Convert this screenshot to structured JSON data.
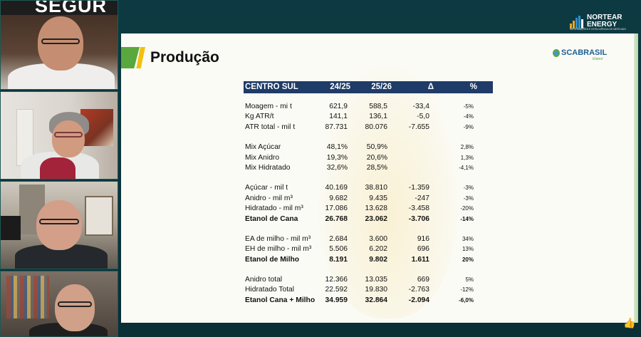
{
  "banner": {
    "text": "SEGUR"
  },
  "brand": {
    "name_line1": "NORTEAR",
    "name_line2": "ENERGY",
    "tagline": "INFORMAÇÕES E INTELIGÊNCIA DE MERCADO"
  },
  "slide": {
    "title": "Produção",
    "logo_name": "SCABRASIL",
    "logo_sub": "Etanol"
  },
  "table": {
    "headers": [
      "CENTRO SUL",
      "24/25",
      "25/26",
      "Δ",
      "%"
    ],
    "groups": [
      [
        {
          "label": "Moagem - mi t",
          "v1": "621,9",
          "v2": "588,5",
          "delta": "-33,4",
          "pct": "-5%",
          "bold": false
        },
        {
          "label": "Kg ATR/t",
          "v1": "141,1",
          "v2": "136,1",
          "delta": "-5,0",
          "pct": "-4%",
          "bold": false
        },
        {
          "label": "ATR total - mil t",
          "v1": "87.731",
          "v2": "80.076",
          "delta": "-7.655",
          "pct": "-9%",
          "bold": false
        }
      ],
      [
        {
          "label": "Mix Açúcar",
          "v1": "48,1%",
          "v2": "50,9%",
          "delta": "",
          "pct": "2,8%",
          "bold": false
        },
        {
          "label": "Mix Anidro",
          "v1": "19,3%",
          "v2": "20,6%",
          "delta": "",
          "pct": "1,3%",
          "bold": false
        },
        {
          "label": "Mix Hidratado",
          "v1": "32,6%",
          "v2": "28,5%",
          "delta": "",
          "pct": "-4,1%",
          "bold": false
        }
      ],
      [
        {
          "label": "Açúcar - mil t",
          "v1": "40.169",
          "v2": "38.810",
          "delta": "-1.359",
          "pct": "-3%",
          "bold": false
        },
        {
          "label": "Anidro - mil m³",
          "v1": "9.682",
          "v2": "9.435",
          "delta": "-247",
          "pct": "-3%",
          "bold": false
        },
        {
          "label": "Hidratado - mil m³",
          "v1": "17.086",
          "v2": "13.628",
          "delta": "-3.458",
          "pct": "-20%",
          "bold": false
        },
        {
          "label": "Etanol de Cana",
          "v1": "26.768",
          "v2": "23.062",
          "delta": "-3.706",
          "pct": "-14%",
          "bold": true
        }
      ],
      [
        {
          "label": "EA de milho - mil m³",
          "v1": "2.684",
          "v2": "3.600",
          "delta": "916",
          "pct": "34%",
          "bold": false
        },
        {
          "label": "EH de milho - mil m³",
          "v1": "5.506",
          "v2": "6.202",
          "delta": "696",
          "pct": "13%",
          "bold": false
        },
        {
          "label": "Etanol de Milho",
          "v1": "8.191",
          "v2": "9.802",
          "delta": "1.611",
          "pct": "20%",
          "bold": true
        }
      ],
      [
        {
          "label": "Anidro total",
          "v1": "12.366",
          "v2": "13.035",
          "delta": "669",
          "pct": "5%",
          "bold": false
        },
        {
          "label": "Hidratado Total",
          "v1": "22.592",
          "v2": "19.830",
          "delta": "-2.763",
          "pct": "-12%",
          "bold": false
        },
        {
          "label": "Etanol Cana + Milho",
          "v1": "34.959",
          "v2": "32.864",
          "delta": "-2.094",
          "pct": "-6,0%",
          "bold": true
        }
      ]
    ]
  },
  "icons": {
    "like": "thumbs-up-icon"
  }
}
